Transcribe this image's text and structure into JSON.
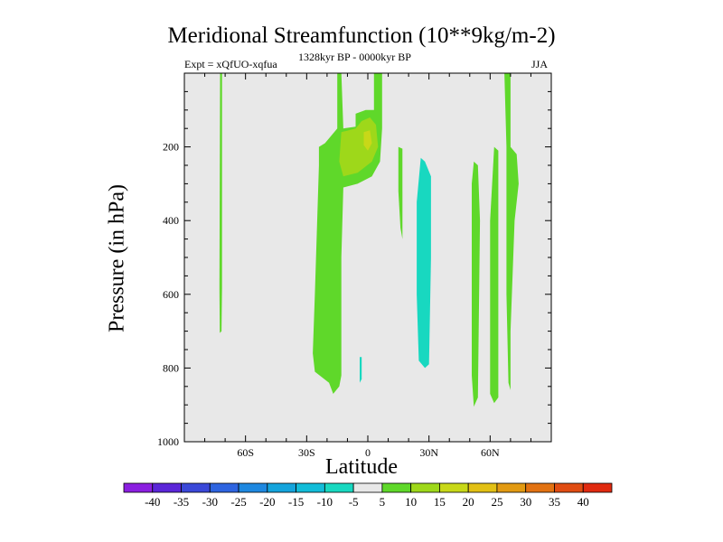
{
  "chart_data": {
    "type": "heatmap",
    "title": "Meridional Streamfunction (10**9kg/m-2)",
    "experiment_label": "Expt = xQfUO-xqfua",
    "period_label": "1328kyr BP - 0000kyr BP",
    "season_label": "JJA",
    "xlabel": "Latitude",
    "ylabel": "Pressure (in hPa)",
    "xlim": [
      -90,
      90
    ],
    "ylim": [
      1000,
      0
    ],
    "xticks": [
      {
        "value": -60,
        "label": "60S"
      },
      {
        "value": -30,
        "label": "30S"
      },
      {
        "value": 0,
        "label": "0"
      },
      {
        "value": 30,
        "label": "30N"
      },
      {
        "value": 60,
        "label": "60N"
      }
    ],
    "yticks": [
      {
        "value": 200,
        "label": "200"
      },
      {
        "value": 400,
        "label": "400"
      },
      {
        "value": 600,
        "label": "600"
      },
      {
        "value": 800,
        "label": "800"
      },
      {
        "value": 1000,
        "label": "1000"
      }
    ],
    "background_color": "#e8e8e8",
    "levels": [
      -40,
      -35,
      -30,
      -25,
      -20,
      -15,
      -10,
      -5,
      5,
      10,
      15,
      20,
      25,
      30,
      35,
      40
    ],
    "colors": [
      "#8b1fe0",
      "#5b26d8",
      "#3a48d8",
      "#2e64e0",
      "#1e88e0",
      "#14a4dc",
      "#12bcd8",
      "#18d8c0",
      "#e8e8e8",
      "#5fd82a",
      "#9ed81a",
      "#c8d818",
      "#e2c014",
      "#e29a12",
      "#e27212",
      "#e04c12",
      "#e02a10"
    ],
    "contour_regions": [
      {
        "name": "band-70s",
        "level_range": "5 to 10",
        "color": "#5fd82a",
        "polygon": [
          [
            -72.5,
            0
          ],
          [
            -71.5,
            0
          ],
          [
            -71.5,
            580
          ],
          [
            -71.8,
            700
          ],
          [
            -72.6,
            705
          ],
          [
            -72.8,
            580
          ]
        ]
      },
      {
        "name": "cell-tropical-main",
        "level_range": "5 to 10",
        "color": "#5fd82a",
        "polygon": [
          [
            -15,
            0
          ],
          [
            -13,
            0
          ],
          [
            -12,
            150
          ],
          [
            -6,
            145
          ],
          [
            -6,
            110
          ],
          [
            -1,
            100
          ],
          [
            3,
            100
          ],
          [
            3,
            0
          ],
          [
            7,
            0
          ],
          [
            7,
            150
          ],
          [
            6,
            240
          ],
          [
            2,
            280
          ],
          [
            -5,
            300
          ],
          [
            -12,
            310
          ],
          [
            -13,
            500
          ],
          [
            -13,
            820
          ],
          [
            -14,
            850
          ],
          [
            -17,
            870
          ],
          [
            -19,
            840
          ],
          [
            -26,
            810
          ],
          [
            -27,
            760
          ],
          [
            -26,
            600
          ],
          [
            -24,
            250
          ],
          [
            -24,
            200
          ],
          [
            -21,
            190
          ],
          [
            -15,
            150
          ]
        ]
      },
      {
        "name": "cell-tropical-inner",
        "level_range": "10 to 15",
        "color": "#9ed81a",
        "polygon": [
          [
            -13,
            160
          ],
          [
            -6,
            150
          ],
          [
            -3,
            130
          ],
          [
            1,
            120
          ],
          [
            4,
            140
          ],
          [
            5,
            200
          ],
          [
            2,
            240
          ],
          [
            -5,
            270
          ],
          [
            -12,
            280
          ],
          [
            -14,
            240
          ]
        ]
      },
      {
        "name": "cell-tropical-core",
        "level_range": "15 to 20",
        "color": "#c8d818",
        "polygon": [
          [
            -2,
            160
          ],
          [
            1,
            155
          ],
          [
            2,
            190
          ],
          [
            0,
            210
          ],
          [
            -2,
            195
          ]
        ]
      },
      {
        "name": "patch-2s",
        "level_range": "-5 to -10",
        "color": "#18d8c0",
        "polygon": [
          [
            -4,
            770
          ],
          [
            -3,
            770
          ],
          [
            -3,
            830
          ],
          [
            -4,
            840
          ]
        ]
      },
      {
        "name": "band-15n",
        "level_range": "5 to 10",
        "color": "#5fd82a",
        "polygon": [
          [
            15,
            200
          ],
          [
            17,
            205
          ],
          [
            17,
            450
          ],
          [
            16,
            420
          ],
          [
            15,
            320
          ]
        ]
      },
      {
        "name": "cell-30n",
        "level_range": "-5 to -10",
        "color": "#18d8c0",
        "polygon": [
          [
            26,
            230
          ],
          [
            28,
            240
          ],
          [
            31,
            280
          ],
          [
            31,
            500
          ],
          [
            30,
            790
          ],
          [
            28,
            800
          ],
          [
            25,
            780
          ],
          [
            24,
            600
          ],
          [
            24,
            350
          ]
        ]
      },
      {
        "name": "band-52n",
        "level_range": "5 to 10",
        "color": "#5fd82a",
        "polygon": [
          [
            52,
            240
          ],
          [
            54,
            250
          ],
          [
            55,
            400
          ],
          [
            54,
            880
          ],
          [
            52,
            905
          ],
          [
            51,
            820
          ],
          [
            51,
            300
          ]
        ]
      },
      {
        "name": "band-62n",
        "level_range": "5 to 10",
        "color": "#5fd82a",
        "polygon": [
          [
            62,
            200
          ],
          [
            64,
            210
          ],
          [
            64,
            880
          ],
          [
            62,
            895
          ],
          [
            60,
            870
          ],
          [
            60,
            400
          ]
        ]
      },
      {
        "name": "band-70n",
        "level_range": "5 to 10",
        "color": "#5fd82a",
        "polygon": [
          [
            67,
            0
          ],
          [
            70,
            0
          ],
          [
            70,
            200
          ],
          [
            73,
            220
          ],
          [
            74,
            300
          ],
          [
            72,
            400
          ],
          [
            70,
            700
          ],
          [
            70,
            860
          ],
          [
            69,
            840
          ],
          [
            68,
            600
          ],
          [
            68,
            200
          ]
        ]
      }
    ],
    "colorbar": {
      "labels": [
        "-40",
        "-35",
        "-30",
        "-25",
        "-20",
        "-15",
        "-10",
        "-5",
        "5",
        "10",
        "15",
        "20",
        "25",
        "30",
        "35",
        "40"
      ]
    }
  }
}
